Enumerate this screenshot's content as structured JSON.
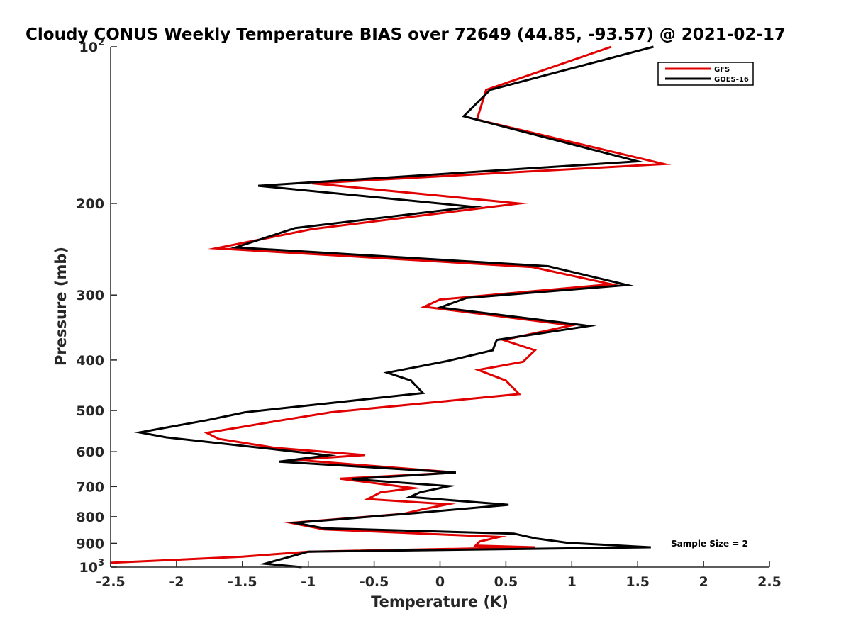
{
  "chart_data": {
    "type": "line",
    "title": "Cloudy CONUS Weekly Temperature BIAS over 72649 (44.85, -93.57) @ 2021-02-17",
    "xlabel": "Temperature (K)",
    "ylabel": "Pressure (mb)",
    "xlim": [
      -2.5,
      2.5
    ],
    "ylim": [
      100,
      1000
    ],
    "yscale": "log",
    "yreversed": true,
    "grid": false,
    "legend_position": "top-right",
    "x_ticks": [
      -2.5,
      -2,
      -1.5,
      -1,
      -0.5,
      0,
      0.5,
      1,
      1.5,
      2,
      2.5
    ],
    "x_tick_labels": [
      "-2.5",
      "-2",
      "-1.5",
      "-1",
      "-0.5",
      "0",
      "0.5",
      "1",
      "1.5",
      "2",
      "2.5"
    ],
    "y_ticks": [
      {
        "value": 100,
        "base": "10",
        "exp": "2"
      },
      {
        "value": 200,
        "label": "200"
      },
      {
        "value": 300,
        "label": "300"
      },
      {
        "value": 400,
        "label": "400"
      },
      {
        "value": 500,
        "label": "500"
      },
      {
        "value": 600,
        "label": "600"
      },
      {
        "value": 700,
        "label": "700"
      },
      {
        "value": 800,
        "label": "800"
      },
      {
        "value": 900,
        "label": "900"
      },
      {
        "value": 1000,
        "base": "10",
        "exp": "3"
      }
    ],
    "annotation": "Sample Size = 2",
    "series": [
      {
        "name": "GFS",
        "color": "#e00000",
        "points": [
          [
            1.3,
            100
          ],
          [
            0.35,
            121
          ],
          [
            0.28,
            138
          ],
          [
            1.7,
            168
          ],
          [
            -0.97,
            183
          ],
          [
            0.6,
            200
          ],
          [
            -0.97,
            224
          ],
          [
            -1.7,
            244
          ],
          [
            0.7,
            265
          ],
          [
            1.3,
            286
          ],
          [
            0.0,
            306
          ],
          [
            -0.12,
            316
          ],
          [
            1.0,
            343
          ],
          [
            0.48,
            366
          ],
          [
            0.72,
            383
          ],
          [
            0.63,
            403
          ],
          [
            0.29,
            418
          ],
          [
            0.5,
            438
          ],
          [
            0.6,
            465
          ],
          [
            -0.83,
            504
          ],
          [
            -1.2,
            522
          ],
          [
            -1.77,
            552
          ],
          [
            -1.68,
            567
          ],
          [
            -1.25,
            590
          ],
          [
            -0.57,
            609
          ],
          [
            -1.1,
            622
          ],
          [
            0.12,
            658
          ],
          [
            -0.76,
            676
          ],
          [
            -0.2,
            705
          ],
          [
            -0.45,
            718
          ],
          [
            -0.55,
            740
          ],
          [
            0.06,
            757
          ],
          [
            -0.13,
            774
          ],
          [
            -0.28,
            790
          ],
          [
            -1.13,
            822
          ],
          [
            -0.88,
            846
          ],
          [
            0.45,
            875
          ],
          [
            0.3,
            893
          ],
          [
            0.27,
            909
          ],
          [
            0.72,
            916
          ],
          [
            -1.0,
            934
          ],
          [
            -1.5,
            955
          ],
          [
            -2.5,
            981
          ]
        ]
      },
      {
        "name": "GOES-16",
        "color": "#000000",
        "points": [
          [
            1.62,
            100
          ],
          [
            0.38,
            121
          ],
          [
            0.18,
            136
          ],
          [
            1.5,
            166
          ],
          [
            -1.38,
            185
          ],
          [
            0.25,
            203
          ],
          [
            -1.1,
            223
          ],
          [
            -1.55,
            243
          ],
          [
            0.82,
            264
          ],
          [
            1.42,
            287
          ],
          [
            0.2,
            304
          ],
          [
            0.0,
            317
          ],
          [
            1.13,
            344
          ],
          [
            0.43,
            366
          ],
          [
            0.4,
            383
          ],
          [
            0.05,
            402
          ],
          [
            -0.4,
            423
          ],
          [
            -0.22,
            438
          ],
          [
            -0.13,
            463
          ],
          [
            -1.48,
            504
          ],
          [
            -1.77,
            522
          ],
          [
            -2.28,
            551
          ],
          [
            -2.08,
            563
          ],
          [
            -1.43,
            587
          ],
          [
            -0.85,
            610
          ],
          [
            -1.22,
            627
          ],
          [
            0.12,
            658
          ],
          [
            -0.67,
            677
          ],
          [
            0.07,
            699
          ],
          [
            -0.15,
            718
          ],
          [
            -0.23,
            733
          ],
          [
            0.52,
            759
          ],
          [
            -0.18,
            787
          ],
          [
            -1.1,
            822
          ],
          [
            -0.88,
            842
          ],
          [
            0.56,
            862
          ],
          [
            0.73,
            881
          ],
          [
            0.97,
            898
          ],
          [
            1.6,
            916
          ],
          [
            -1.0,
            934
          ],
          [
            -1.33,
            985
          ],
          [
            -1.05,
            1000
          ]
        ]
      }
    ]
  }
}
